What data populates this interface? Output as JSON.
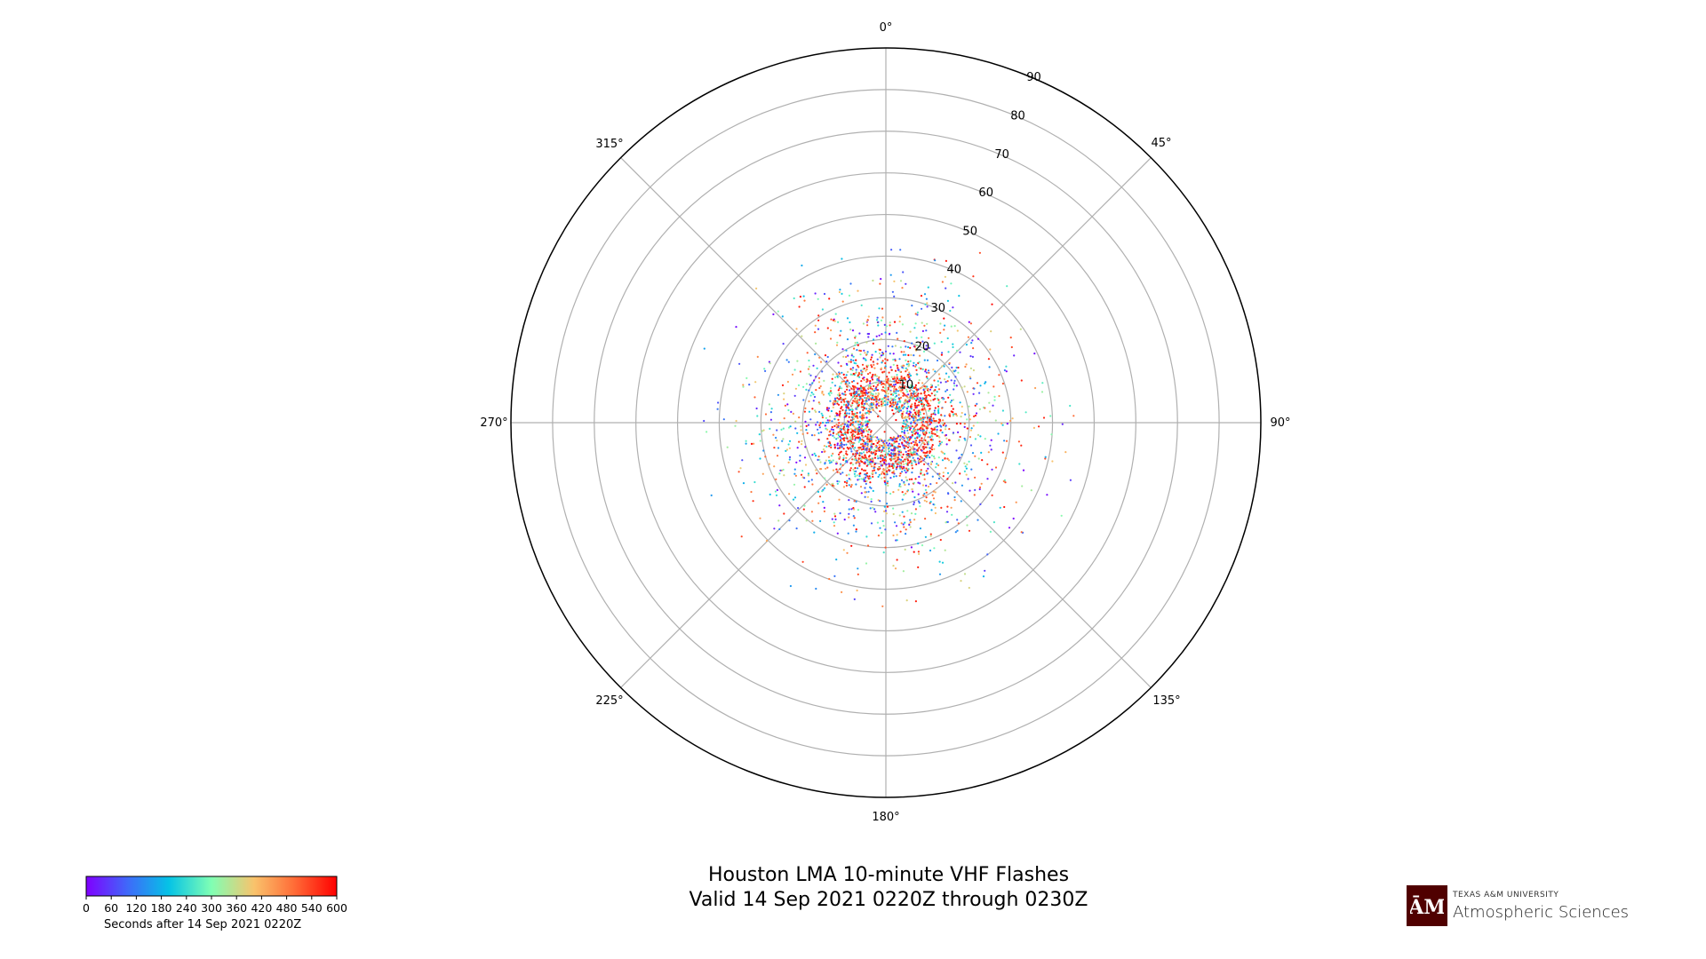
{
  "chart_data": {
    "type": "scatter",
    "projection": "polar",
    "theta_zero": "N",
    "theta_direction": "clockwise",
    "title": "Houston LMA 10-minute VHF Flashes",
    "subtitle": "Valid 14 Sep 2021 0220Z through 0230Z",
    "theta_tick_labels": [
      "0°",
      "45°",
      "90°",
      "135°",
      "180°",
      "225°",
      "270°",
      "315°"
    ],
    "r_ticks": [
      10,
      20,
      30,
      40,
      50,
      60,
      70,
      80,
      90
    ],
    "r_tick_labels": [
      "10",
      "20",
      "30",
      "40",
      "50",
      "60",
      "70",
      "80",
      "90"
    ],
    "rlim": [
      0,
      90
    ],
    "grid": true,
    "colorbar": {
      "ticks": [
        0,
        60,
        120,
        180,
        240,
        300,
        360,
        420,
        480,
        540,
        600
      ],
      "tick_labels": [
        "0",
        "60",
        "120",
        "180",
        "240",
        "300",
        "360",
        "420",
        "480",
        "540",
        "600"
      ],
      "range": [
        0,
        600
      ],
      "colormap": "rainbow",
      "label": "Seconds after 14 Sep 2021 0220Z",
      "placement": "bottom-left"
    },
    "points_summary": {
      "count_estimate": 3000,
      "r_range": [
        2,
        48
      ],
      "dense_ring_r": [
        5,
        15
      ],
      "ring_color_time": 570
    }
  },
  "logo": {
    "mark": "ATM",
    "university": "TEXAS A&M UNIVERSITY",
    "department": "Atmospheric Sciences",
    "color": "#500000"
  }
}
